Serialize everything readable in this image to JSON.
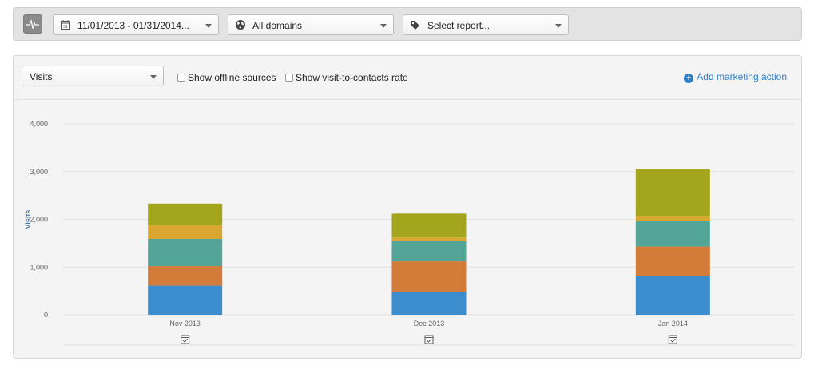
{
  "toolbar": {
    "date_range": "11/01/2013 - 01/31/2014...",
    "domain": "All domains",
    "report": "Select report..."
  },
  "controls": {
    "metric": "Visits",
    "show_offline": "Show offline sources",
    "show_rate": "Show visit-to-contacts rate",
    "add_action": "Add marketing action"
  },
  "colors": {
    "series": [
      "#3c8dce",
      "#d37b39",
      "#52a597",
      "#d9a730",
      "#a3a61c"
    ],
    "link": "#2d7fc9"
  },
  "chart_data": {
    "type": "bar",
    "stacked": true,
    "categories": [
      "Nov 2013",
      "Dec 2013",
      "Jan 2014"
    ],
    "series": [
      {
        "values": [
          610,
          470,
          820
        ]
      },
      {
        "values": [
          410,
          650,
          610
        ]
      },
      {
        "values": [
          570,
          420,
          530
        ]
      },
      {
        "values": [
          290,
          80,
          110
        ]
      },
      {
        "values": [
          450,
          500,
          980
        ]
      }
    ],
    "ylabel": "Visits",
    "yticks": [
      "0",
      "1,000",
      "2,000",
      "3,000",
      "4,000"
    ],
    "ylim": [
      0,
      4000
    ],
    "grid": true,
    "legend": "none"
  }
}
